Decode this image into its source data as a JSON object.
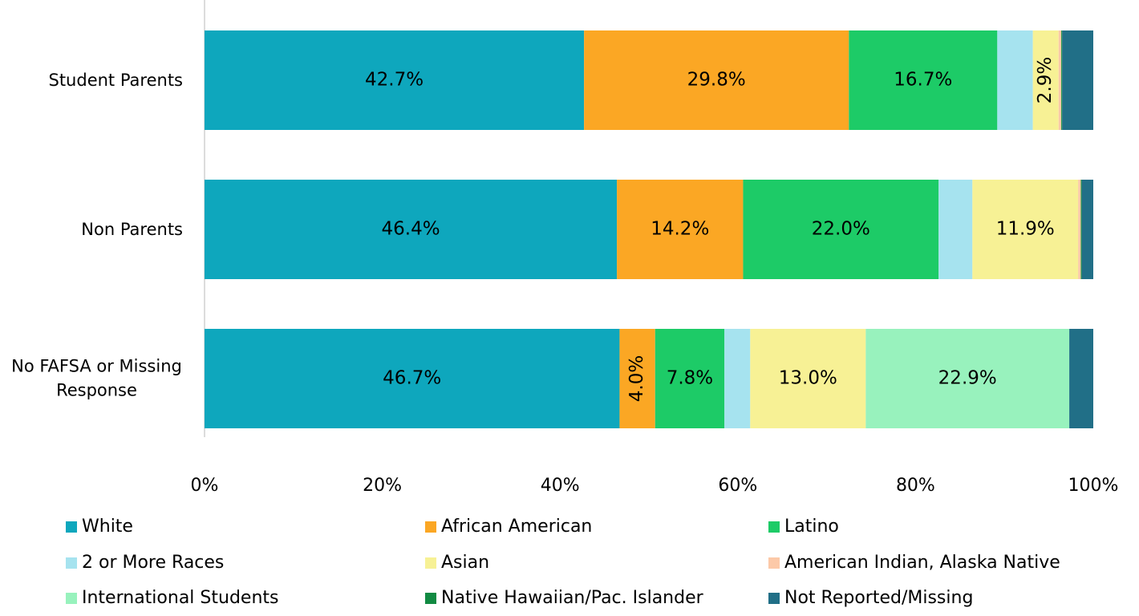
{
  "chart_data": {
    "type": "stacked-bar-horizontal",
    "categories": [
      "Student Parents",
      "Non Parents",
      "No FAFSA or Missing Response"
    ],
    "series": [
      {
        "name": "White",
        "color": "#0ea7bd",
        "values": [
          42.7,
          46.4,
          46.7
        ],
        "value_labels": [
          "42.7%",
          "46.4%",
          "46.7%"
        ]
      },
      {
        "name": "African American",
        "color": "#fba724",
        "values": [
          29.8,
          14.2,
          4.0
        ],
        "value_labels": [
          "29.8%",
          "14.2%",
          "4.0%"
        ]
      },
      {
        "name": "Latino",
        "color": "#1dcb67",
        "values": [
          16.7,
          22.0,
          7.8
        ],
        "value_labels": [
          "16.7%",
          "22.0%",
          "7.8%"
        ]
      },
      {
        "name": "2 or More Races",
        "color": "#a6e3ef",
        "values": [
          4.0,
          3.8,
          2.9
        ]
      },
      {
        "name": "Asian",
        "color": "#f7f195",
        "values": [
          2.9,
          11.9,
          13.0
        ],
        "value_labels": [
          "2.9%",
          "11.9%",
          "13.0%"
        ]
      },
      {
        "name": "American Indian, Alaska Native",
        "color": "#fcc9a8",
        "values": [
          0.3,
          0.3,
          0
        ]
      },
      {
        "name": "International Students",
        "color": "#98f2bd",
        "values": [
          0,
          0,
          22.9
        ],
        "value_labels": [
          null,
          null,
          "22.9%"
        ]
      },
      {
        "name": "Native Hawaiian/Pac. Islander",
        "color": "#118a42",
        "values": [
          0.1,
          0.1,
          0
        ]
      },
      {
        "name": "Not Reported/Missing",
        "color": "#216f87",
        "values": [
          3.5,
          1.3,
          2.7
        ]
      }
    ],
    "xlim": [
      0,
      100
    ],
    "xticks": [
      {
        "value": 0,
        "label": "0%"
      },
      {
        "value": 20,
        "label": "20%"
      },
      {
        "value": 40,
        "label": "40%"
      },
      {
        "value": 60,
        "label": "60%"
      },
      {
        "value": 80,
        "label": "80%"
      },
      {
        "value": 100,
        "label": "100%"
      }
    ],
    "legend": "bottom"
  }
}
